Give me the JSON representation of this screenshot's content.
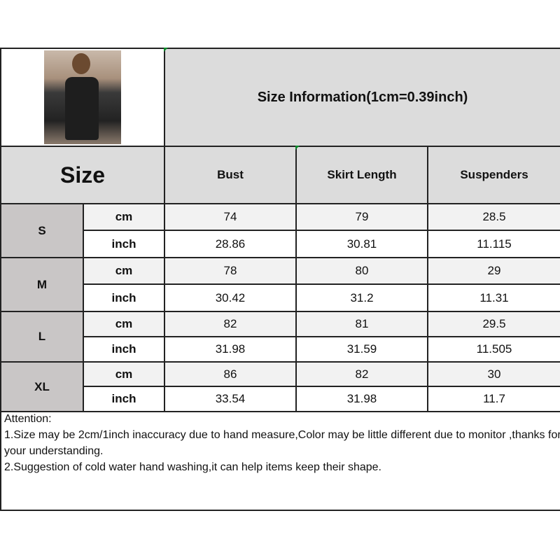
{
  "header": {
    "title": "Size Information(1cm=0.39inch)",
    "size_label": "Size"
  },
  "columns": [
    "Bust",
    "Skirt Length",
    "Suspenders"
  ],
  "rows": [
    {
      "size": "S",
      "cm": {
        "unit": "cm",
        "values": [
          "74",
          "79",
          "28.5"
        ]
      },
      "inch": {
        "unit": "inch",
        "values": [
          "28.86",
          "30.81",
          "11.115"
        ]
      }
    },
    {
      "size": "M",
      "cm": {
        "unit": "cm",
        "values": [
          "78",
          "80",
          "29"
        ]
      },
      "inch": {
        "unit": "inch",
        "values": [
          "30.42",
          "31.2",
          "11.31"
        ]
      }
    },
    {
      "size": "L",
      "cm": {
        "unit": "cm",
        "values": [
          "82",
          "81",
          "29.5"
        ]
      },
      "inch": {
        "unit": "inch",
        "values": [
          "31.98",
          "31.59",
          "11.505"
        ]
      }
    },
    {
      "size": "XL",
      "cm": {
        "unit": "cm",
        "values": [
          "86",
          "82",
          "30"
        ]
      },
      "inch": {
        "unit": "inch",
        "values": [
          "33.54",
          "31.98",
          "11.7"
        ]
      }
    }
  ],
  "attention": {
    "heading": "Attention:",
    "lines": [
      "1.Size may be 2cm/1inch inaccuracy due to hand measure,Color may be little different due to monitor ,thanks for your understanding.",
      "2.Suggestion of cold water hand washing,it can help items keep their shape."
    ]
  },
  "colors": {
    "header_bg": "#dcdcdc",
    "size_bg": "#c9c6c6",
    "cm_row_bg": "#f2f2f2",
    "inch_row_bg": "#ffffff"
  }
}
